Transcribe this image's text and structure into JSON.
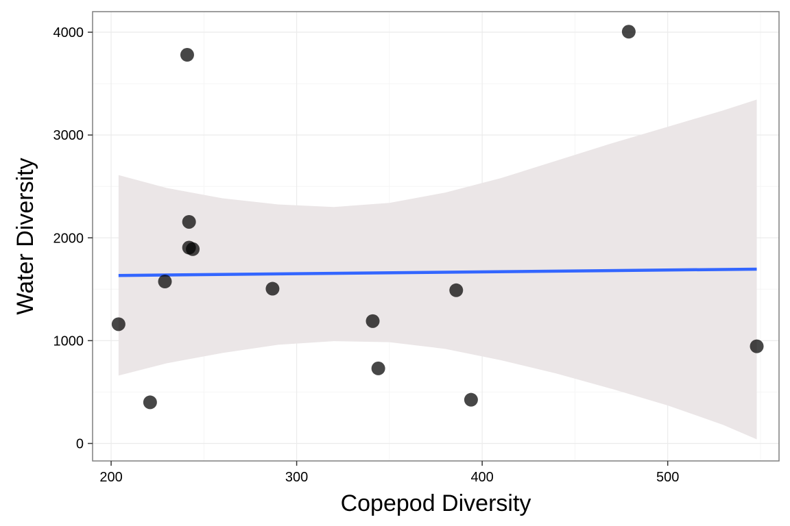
{
  "chart_data": {
    "type": "scatter",
    "title": "",
    "xlabel": "Copepod Diversity",
    "ylabel": "Water Diversity",
    "xlim": [
      190,
      560
    ],
    "ylim": [
      -170,
      4200
    ],
    "x_ticks": [
      200,
      300,
      400,
      500
    ],
    "y_ticks": [
      0,
      1000,
      2000,
      3000,
      4000
    ],
    "x_tick_labels": [
      "200",
      "300",
      "400",
      "500"
    ],
    "y_tick_labels": [
      "0",
      "1000",
      "2000",
      "3000",
      "4000"
    ],
    "grid": true,
    "legend": "none",
    "points": [
      {
        "x": 204,
        "y": 1160
      },
      {
        "x": 221,
        "y": 400
      },
      {
        "x": 229,
        "y": 1575
      },
      {
        "x": 241,
        "y": 3780
      },
      {
        "x": 242,
        "y": 2155
      },
      {
        "x": 242,
        "y": 1905
      },
      {
        "x": 244,
        "y": 1890
      },
      {
        "x": 287,
        "y": 1505
      },
      {
        "x": 341,
        "y": 1190
      },
      {
        "x": 344,
        "y": 730
      },
      {
        "x": 386,
        "y": 1490
      },
      {
        "x": 394,
        "y": 425
      },
      {
        "x": 479,
        "y": 4005
      },
      {
        "x": 548,
        "y": 945
      }
    ],
    "regression": {
      "x_range": [
        204,
        548
      ],
      "intercept": 1597,
      "slope": 0.18,
      "band": [
        {
          "x": 204,
          "lo": 660,
          "hi": 2610
        },
        {
          "x": 230,
          "lo": 780,
          "hi": 2485
        },
        {
          "x": 260,
          "lo": 880,
          "hi": 2385
        },
        {
          "x": 290,
          "lo": 960,
          "hi": 2325
        },
        {
          "x": 320,
          "lo": 995,
          "hi": 2300
        },
        {
          "x": 350,
          "lo": 985,
          "hi": 2340
        },
        {
          "x": 380,
          "lo": 920,
          "hi": 2440
        },
        {
          "x": 410,
          "lo": 810,
          "hi": 2580
        },
        {
          "x": 440,
          "lo": 680,
          "hi": 2750
        },
        {
          "x": 470,
          "lo": 530,
          "hi": 2920
        },
        {
          "x": 500,
          "lo": 370,
          "hi": 3080
        },
        {
          "x": 530,
          "lo": 180,
          "hi": 3240
        },
        {
          "x": 548,
          "lo": 40,
          "hi": 3345
        }
      ]
    },
    "colors": {
      "point": "#000000",
      "line": "#3366ff",
      "band": "#ebe6e7",
      "grid_major": "#ebebeb",
      "grid_minor": "#f5f5f5",
      "panel_border": "#7f7f7f"
    }
  }
}
